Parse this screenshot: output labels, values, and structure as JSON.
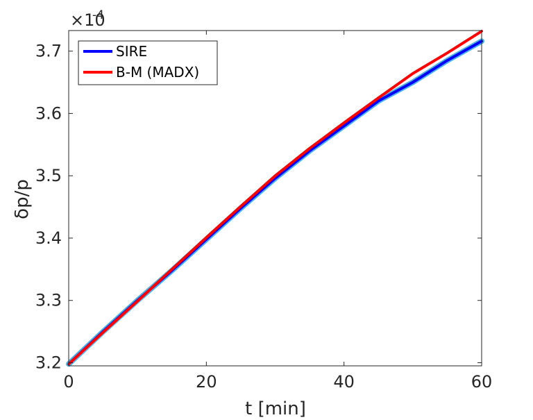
{
  "chart_data": {
    "type": "line",
    "title": "",
    "xlabel": "t [min]",
    "ylabel": "δp/p",
    "y_multiplier": "×10",
    "y_multiplier_exponent": "-4",
    "xlim": [
      0,
      60
    ],
    "ylim": [
      3.195,
      3.733
    ],
    "x_ticks": [
      0,
      20,
      40,
      60
    ],
    "x_tick_labels": [
      "0",
      "20",
      "40",
      "60"
    ],
    "y_ticks": [
      3.2,
      3.3,
      3.4,
      3.5,
      3.6,
      3.7
    ],
    "y_tick_labels": [
      "3.2",
      "3.3",
      "3.4",
      "3.5",
      "3.6",
      "3.7"
    ],
    "grid": false,
    "legend_position": "top-left",
    "series": [
      {
        "name": "SIRE",
        "color": "#0000ff",
        "band_color": "#4fb3e8",
        "x": [
          0,
          5,
          10,
          15,
          20,
          25,
          30,
          35,
          40,
          45,
          50,
          55,
          60
        ],
        "y": [
          3.198,
          3.25,
          3.3,
          3.348,
          3.398,
          3.448,
          3.496,
          3.54,
          3.58,
          3.62,
          3.65,
          3.685,
          3.716
        ]
      },
      {
        "name": "B-M (MADX)",
        "color": "#ff0000",
        "x": [
          0,
          5,
          10,
          15,
          20,
          25,
          30,
          35,
          40,
          45,
          50,
          55,
          60
        ],
        "y": [
          3.198,
          3.249,
          3.299,
          3.35,
          3.401,
          3.451,
          3.5,
          3.544,
          3.585,
          3.625,
          3.664,
          3.697,
          3.732
        ]
      }
    ]
  }
}
